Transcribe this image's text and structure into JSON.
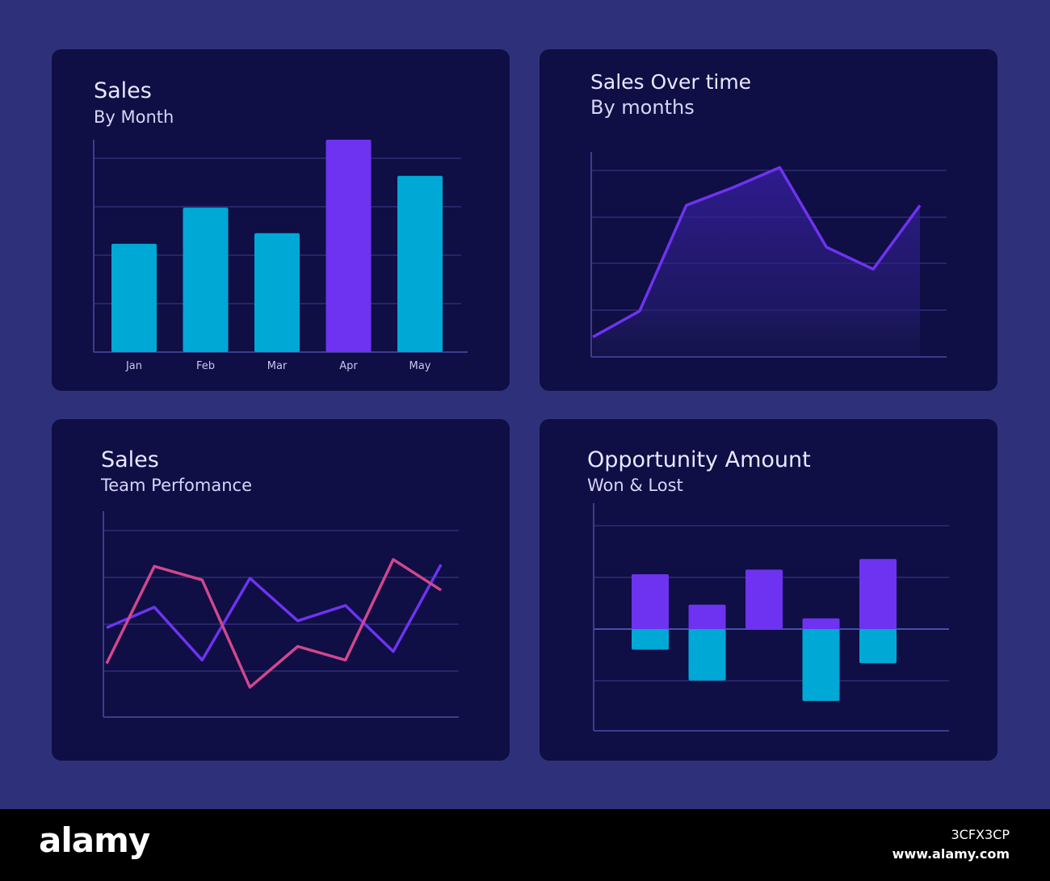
{
  "colors": {
    "background": "#2e317a",
    "panel": "#0f0e45",
    "cyan": "#00a8d6",
    "purple": "#6e33f0",
    "pink": "#d1478c",
    "grid": "#3b3d8c"
  },
  "chart_data": [
    {
      "type": "bar",
      "title": "Sales",
      "subtitle": "By Month",
      "categories": [
        "Jan",
        "Feb",
        "Mar",
        "Apr",
        "May"
      ],
      "values": [
        51,
        68,
        56,
        100,
        83
      ],
      "highlight_index": 3,
      "ylim": [
        0,
        100
      ],
      "grid": true
    },
    {
      "type": "area",
      "title": "Sales Over time",
      "subtitle": "By months",
      "x": [
        1,
        2,
        3,
        4,
        5,
        6,
        7,
        8
      ],
      "values": [
        10,
        23,
        76,
        85,
        95,
        55,
        44,
        76
      ],
      "ylim": [
        0,
        100
      ],
      "grid": true
    },
    {
      "type": "line",
      "title": "Sales",
      "subtitle": "Team Perfomance",
      "x": [
        1,
        2,
        3,
        4,
        5,
        6,
        7,
        8
      ],
      "ylim": [
        0,
        100
      ],
      "grid": true,
      "series": [
        {
          "values": [
            43,
            55,
            24,
            72,
            47,
            56,
            29,
            80
          ]
        },
        {
          "values": [
            22,
            79,
            71,
            8,
            32,
            24,
            83,
            65
          ]
        }
      ]
    },
    {
      "type": "bar",
      "title": "Opportunity Amount",
      "subtitle": "Won & Lost",
      "categories": [
        "1",
        "2",
        "3",
        "4",
        "5"
      ],
      "series": [
        {
          "values": [
            36,
            16,
            39,
            7,
            46
          ]
        },
        {
          "values": [
            -12,
            -30,
            0,
            -42,
            -20
          ]
        }
      ],
      "ylim": [
        -50,
        62
      ],
      "grid": true
    }
  ],
  "watermark": {
    "brand": "alamy",
    "image_id": "3CFX3CP",
    "site": "www.alamy.com"
  }
}
